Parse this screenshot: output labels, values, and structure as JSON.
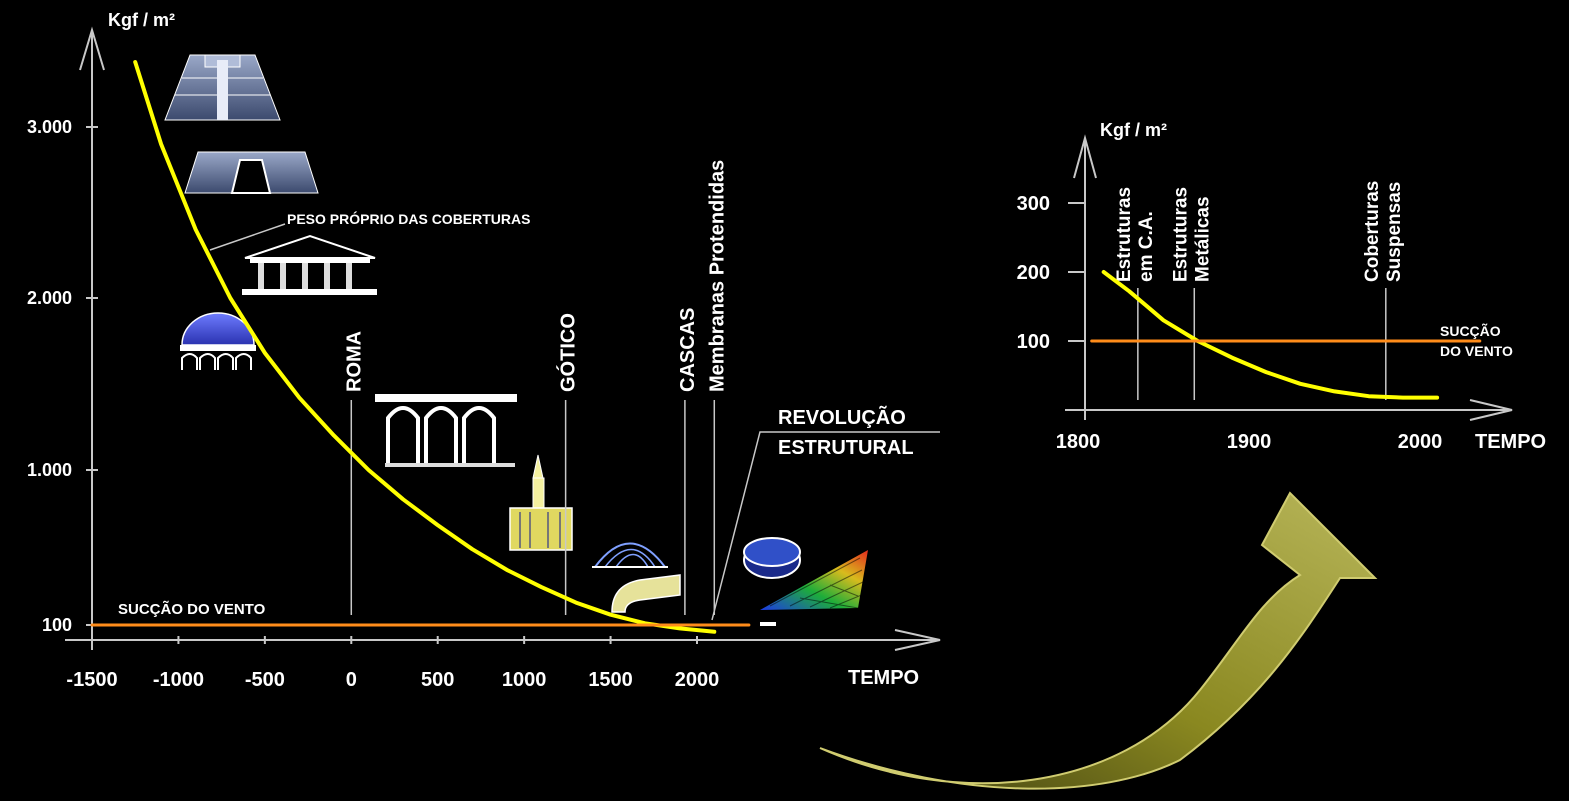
{
  "colors": {
    "background": "#000000",
    "axis": "#c8c8c8",
    "curve": "#ffff00",
    "wind_line": "#ff8c1a",
    "text": "#ffffff",
    "arrow_fill": "#8c8a1e",
    "arrow_edge": "#c8c45a"
  },
  "chart_data": [
    {
      "type": "line",
      "y_unit_label": "Kgf / m²",
      "xlabel": "TEMPO",
      "x_ticks": [
        -1500,
        -1000,
        -500,
        0,
        500,
        1000,
        1500,
        2000
      ],
      "x_tick_labels": [
        "-1500",
        "-1000",
        "-500",
        "0",
        "500",
        "1000",
        "1500",
        "2000"
      ],
      "y_ticks": [
        100,
        1000,
        2000,
        3000
      ],
      "y_tick_labels": [
        "100",
        "1.000",
        "2.000",
        "3.000"
      ],
      "xlim": [
        -1500,
        2500
      ],
      "ylim": [
        0,
        3500
      ],
      "series": [
        {
          "name": "PESO PRÓPRIO DAS COBERTURAS",
          "color": "curve",
          "x": [
            -1250,
            -1100,
            -900,
            -700,
            -500,
            -300,
            -100,
            100,
            300,
            500,
            700,
            900,
            1100,
            1300,
            1500,
            1700,
            1900,
            2100
          ],
          "y": [
            3380,
            2900,
            2400,
            2000,
            1680,
            1420,
            1200,
            1000,
            830,
            680,
            540,
            420,
            320,
            230,
            160,
            110,
            80,
            60
          ]
        },
        {
          "name": "SUCÇÃO DO VENTO",
          "color": "wind_line",
          "x": [
            -1500,
            2300
          ],
          "y": [
            100,
            100
          ]
        }
      ],
      "annotations": {
        "curve_label": "PESO PRÓPRIO DAS COBERTURAS",
        "wind_label": "SUCÇÃO DO VENTO",
        "revolution_line1": "REVOLUÇÃO",
        "revolution_line2": "ESTRUTURAL",
        "eras": [
          {
            "label": "ROMA",
            "x": 0
          },
          {
            "label": "GÓTICO",
            "x": 1240
          },
          {
            "label": "CASCAS",
            "x": 1930
          },
          {
            "label": "Membranas Protendidas",
            "x": 2100
          }
        ]
      }
    },
    {
      "type": "line",
      "y_unit_label": "Kgf / m²",
      "xlabel": "TEMPO",
      "x_ticks": [
        1800,
        1900,
        2000
      ],
      "x_tick_labels": [
        "1800",
        "1900",
        "2000"
      ],
      "y_ticks": [
        100,
        200,
        300
      ],
      "y_tick_labels": [
        "100",
        "200",
        "300"
      ],
      "xlim": [
        1800,
        2060
      ],
      "ylim": [
        0,
        380
      ],
      "series": [
        {
          "name": "Peso próprio",
          "color": "curve",
          "x": [
            1815,
            1830,
            1850,
            1870,
            1890,
            1910,
            1930,
            1950,
            1970,
            1990,
            2010
          ],
          "y": [
            200,
            172,
            130,
            100,
            76,
            55,
            38,
            27,
            20,
            18,
            18
          ]
        },
        {
          "name": "SUCÇÃO DO VENTO",
          "color": "wind_line",
          "x": [
            1808,
            2035
          ],
          "y": [
            100,
            100
          ]
        }
      ],
      "annotations": {
        "wind_label_line1": "SUCÇÃO",
        "wind_label_line2": "DO VENTO",
        "eras": [
          {
            "line1": "Estruturas",
            "line2": "em C.A.",
            "x": 1835
          },
          {
            "line1": "Estruturas",
            "line2": "Metálicas",
            "x": 1868
          },
          {
            "line1": "Coberturas",
            "line2": "Suspensas",
            "x": 1980
          }
        ]
      }
    }
  ]
}
